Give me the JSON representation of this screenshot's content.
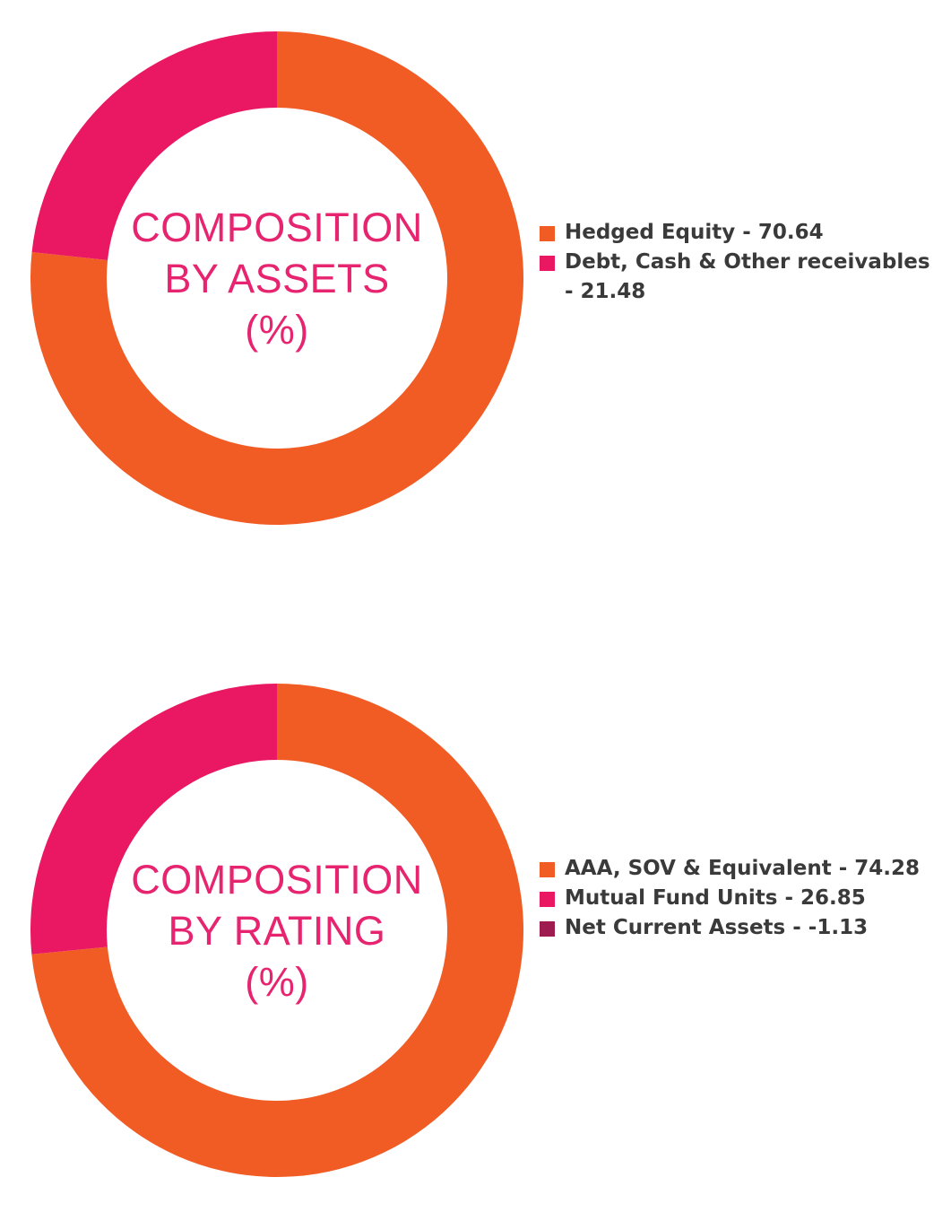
{
  "colors": {
    "orange": "#f15c25",
    "pink": "#ea1863",
    "maroon": "#9e1b4f",
    "title": "#e7246f"
  },
  "chart_data": [
    {
      "type": "pie",
      "title_lines": [
        "COMPOSITION",
        "BY ASSETS",
        "(%)"
      ],
      "series": [
        {
          "name": "Hedged Equity",
          "value": 70.64,
          "label": "Hedged Equity - 70.64",
          "color": "#f15c25"
        },
        {
          "name": "Debt, Cash & Other receivables",
          "value": 21.48,
          "label": "Debt, Cash & Other receivables - 21.48",
          "color": "#ea1863"
        }
      ]
    },
    {
      "type": "pie",
      "title_lines": [
        "COMPOSITION",
        "BY RATING",
        "(%)"
      ],
      "series": [
        {
          "name": "AAA, SOV & Equivalent",
          "value": 74.28,
          "label": "AAA, SOV & Equivalent - 74.28",
          "color": "#f15c25"
        },
        {
          "name": "Mutual Fund Units",
          "value": 26.85,
          "label": "Mutual Fund Units - 26.85",
          "color": "#ea1863"
        },
        {
          "name": "Net Current Assets",
          "value": -1.13,
          "label": "Net Current Assets - -1.13",
          "color": "#9e1b4f"
        }
      ]
    }
  ]
}
